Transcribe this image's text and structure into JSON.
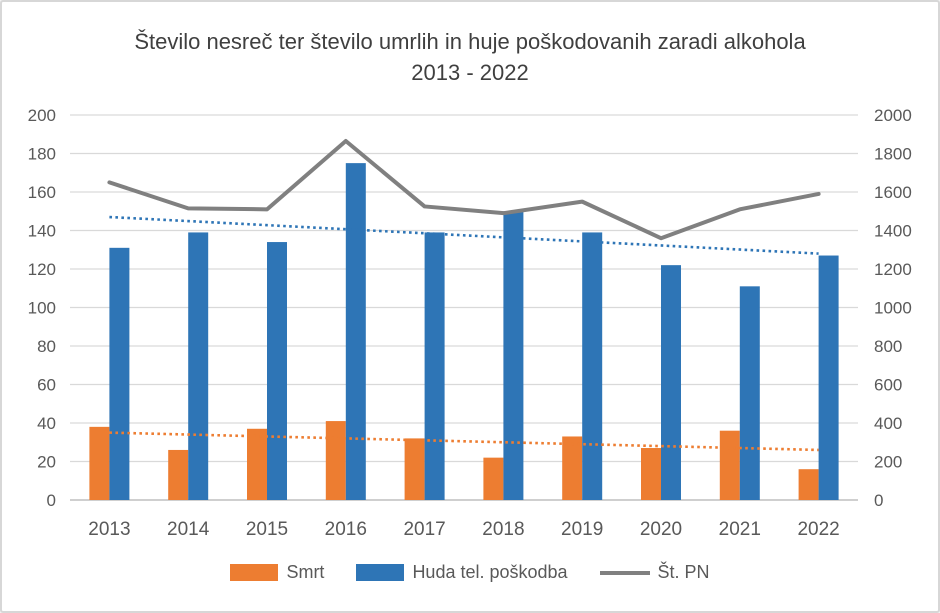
{
  "canvas": {
    "background": "#ffffff",
    "border_color": "#d7d7d7"
  },
  "chart_data": {
    "type": "combo-bar-line",
    "title": "Število nesreč ter število umrlih in huje poškodovanih zaradi alkohola 2013 - 2022",
    "categories": [
      "2013",
      "2014",
      "2015",
      "2016",
      "2017",
      "2018",
      "2019",
      "2020",
      "2021",
      "2022"
    ],
    "series": [
      {
        "name": "Smrt",
        "type": "bar",
        "axis": "left",
        "color": "#ED7D31",
        "values": [
          38,
          26,
          37,
          41,
          32,
          22,
          33,
          27,
          36,
          16
        ]
      },
      {
        "name": "Huda tel. poškodba",
        "type": "bar",
        "axis": "left",
        "color": "#2E75B6",
        "values": [
          131,
          139,
          134,
          175,
          139,
          150,
          139,
          122,
          111,
          127
        ]
      },
      {
        "name": "Št. PN",
        "type": "line",
        "axis": "right",
        "color": "#808080",
        "values": [
          1650,
          1515,
          1510,
          1865,
          1525,
          1490,
          1550,
          1360,
          1510,
          1590
        ]
      }
    ],
    "trendlines": [
      {
        "series": "Huda tel. poškodba",
        "color": "#2E75B6",
        "style": "dotted",
        "start_value": 147,
        "end_value": 128
      },
      {
        "series": "Smrt",
        "color": "#ED7D31",
        "style": "dotted",
        "start_value": 35,
        "end_value": 26
      }
    ],
    "left_axis": {
      "min": 0,
      "max": 200,
      "step": 20,
      "tick_labels": [
        "0",
        "20",
        "40",
        "60",
        "80",
        "100",
        "120",
        "140",
        "160",
        "180",
        "200"
      ]
    },
    "right_axis": {
      "min": 0,
      "max": 2000,
      "step": 200,
      "tick_labels": [
        "0",
        "200",
        "400",
        "600",
        "800",
        "1000",
        "1200",
        "1400",
        "1600",
        "1800",
        "2000"
      ]
    },
    "gridlines": true,
    "legend_position": "bottom",
    "colors": {
      "grid": "#D9D9D9",
      "axis_line": "#CFCFCF",
      "tick_text": "#595959",
      "title_text": "#3F3F3F"
    }
  },
  "legend": {
    "items": [
      {
        "label": "Smrt",
        "marker": "bar-swatch",
        "color": "#ED7D31"
      },
      {
        "label": "Huda tel. poškodba",
        "marker": "bar-swatch",
        "color": "#2E75B6"
      },
      {
        "label": "Št. PN",
        "marker": "line-swatch",
        "color": "#808080"
      }
    ]
  }
}
